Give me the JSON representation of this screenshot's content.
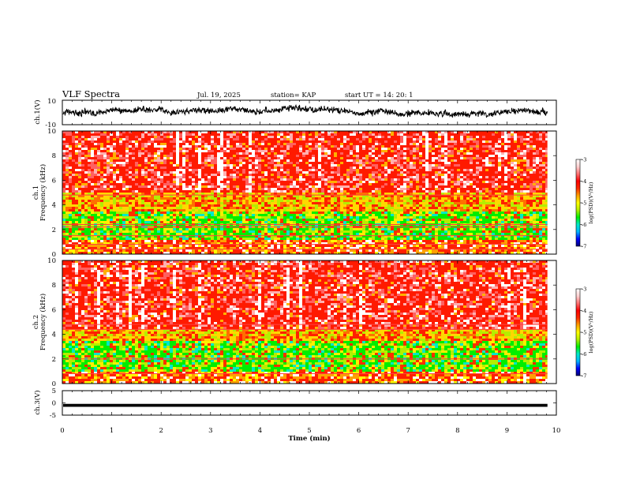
{
  "header": {
    "title": "VLF Spectra",
    "date": "Jul. 19, 2025",
    "station": "station= KAP",
    "start_ut": "start UT = 14: 20: 1"
  },
  "colors": {
    "spectrum_palette": [
      "#000070",
      "#0000ff",
      "#00b4ff",
      "#00e8c8",
      "#00ee00",
      "#b4ee00",
      "#ffff00",
      "#ffa000",
      "#ff2a00",
      "#ff0000",
      "#ff7070",
      "#ffd0d0",
      "#ffffff"
    ]
  },
  "chart_data": [
    {
      "type": "line",
      "name": "ch1-waveform",
      "ylabel": "ch.1(V)",
      "ylim": [
        -10,
        10
      ],
      "yticks": [
        10,
        -10
      ],
      "xlim": [
        0,
        10
      ],
      "trace_range_min": [
        0,
        9.82
      ],
      "trace_level_v": [
        -6,
        6
      ],
      "description_values": {
        "noise_min_v": -8,
        "noise_max_v": 8
      }
    },
    {
      "type": "heatmap",
      "name": "ch1-spectrogram",
      "ylabel_line1": "ch.1",
      "ylabel_line2": "Frequency (kHz)",
      "xlim": [
        0,
        10
      ],
      "data_end_min": 9.82,
      "ylim": [
        0,
        10
      ],
      "yticks": [
        0,
        2,
        4,
        6,
        8,
        10
      ],
      "colorbar": {
        "label": "log(PSD)(V²/Hz)",
        "range": [
          -7,
          -3
        ],
        "ticks": [
          -3,
          -4,
          -5,
          -6,
          -7
        ]
      },
      "bands_khz": {
        "green_band": [
          1.2,
          3.4
        ],
        "yellow_band": [
          3.4,
          5.0
        ],
        "red_high": [
          5.0,
          10.0
        ],
        "red_low": [
          0.0,
          0.8
        ]
      },
      "lines_khz": [
        0.4,
        0.8,
        1.5,
        2.2,
        2.4,
        4.8
      ]
    },
    {
      "type": "heatmap",
      "name": "ch2-spectrogram",
      "ylabel_line1": "ch.2",
      "ylabel_line2": "Frequency (kHz)",
      "xlim": [
        0,
        10
      ],
      "data_end_min": 9.82,
      "ylim": [
        0,
        10
      ],
      "yticks": [
        0,
        2,
        4,
        6,
        8,
        10
      ],
      "colorbar": {
        "label": "log(PSD)(V²/Hz)",
        "range": [
          -7,
          -3
        ],
        "ticks": [
          -3,
          -4,
          -5,
          -6,
          -7
        ]
      },
      "bands_khz": {
        "green_band": [
          1.0,
          3.4
        ],
        "yellow_band": [
          3.4,
          4.4
        ],
        "red_high": [
          4.4,
          10.0
        ],
        "red_low": [
          0.0,
          0.8
        ]
      },
      "lines_khz": [
        0.8,
        2.0,
        4.4,
        4.8
      ]
    },
    {
      "type": "line",
      "name": "ch3-waveform",
      "ylabel": "ch.3(V)",
      "ylim": [
        -5,
        5
      ],
      "yticks": [
        5,
        0,
        -5
      ],
      "xlim": [
        0,
        10
      ],
      "trace_range_min": [
        0,
        9.82
      ],
      "trace_band_v": [
        -1.6,
        -0.4
      ]
    }
  ],
  "xaxis": {
    "label": "Time (min)",
    "ticks": [
      0,
      1,
      2,
      3,
      4,
      5,
      6,
      7,
      8,
      9,
      10
    ]
  }
}
